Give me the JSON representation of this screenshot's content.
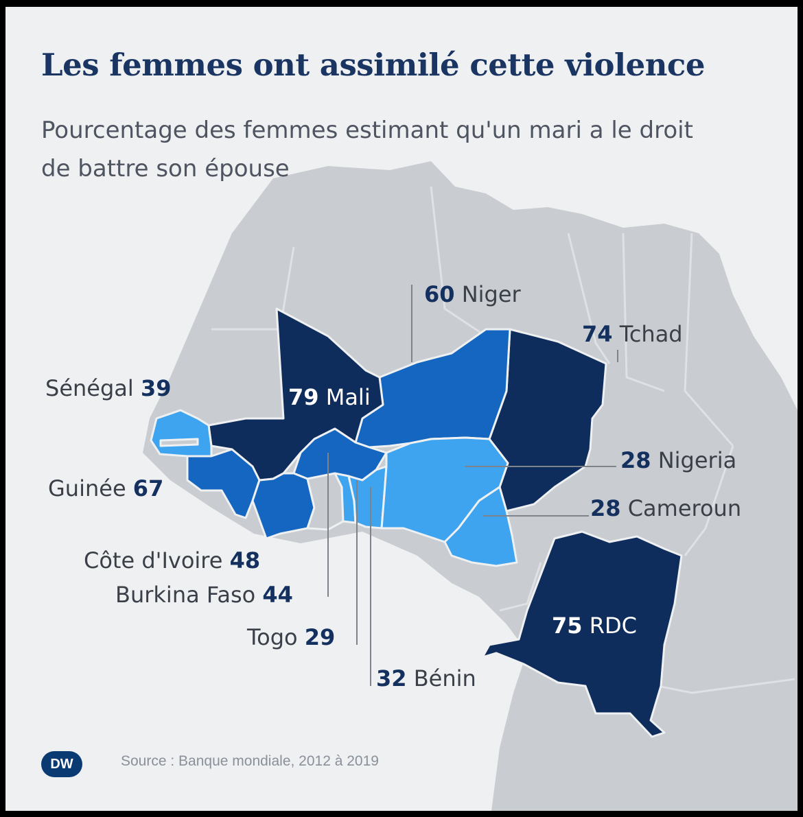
{
  "title": "Les femmes ont assimilé cette violence",
  "subtitle": "Pourcentage des femmes estimant qu'un mari a le droit de battre son épouse",
  "source": "Source : Banque mondiale, 2012 à 2019",
  "logo_text": "DW",
  "colors": {
    "background": "#eef0f2",
    "land": "#c9ccd0",
    "border": "#eef0f2",
    "dark": "#0f2d5c",
    "medium": "#1466c0",
    "light": "#3fa4ef",
    "title": "#1b3562",
    "leader": "#7e838b"
  },
  "chart_data": {
    "type": "choropleth",
    "title": "Les femmes ont assimilé cette violence",
    "subtitle": "Pourcentage des femmes estimant qu'un mari a le droit de battre son épouse",
    "unit": "%",
    "countries": [
      {
        "id": "mali",
        "name": "Mali",
        "value": 79,
        "shade": "dark"
      },
      {
        "id": "niger",
        "name": "Niger",
        "value": 60,
        "shade": "medium"
      },
      {
        "id": "tchad",
        "name": "Tchad",
        "value": 74,
        "shade": "dark"
      },
      {
        "id": "senegal",
        "name": "Sénégal",
        "value": 39,
        "shade": "light"
      },
      {
        "id": "guinee",
        "name": "Guinée",
        "value": 67,
        "shade": "medium"
      },
      {
        "id": "cote",
        "name": "Côte d'Ivoire",
        "value": 48,
        "shade": "medium"
      },
      {
        "id": "burkina",
        "name": "Burkina Faso",
        "value": 44,
        "shade": "medium"
      },
      {
        "id": "togo",
        "name": "Togo",
        "value": 29,
        "shade": "light"
      },
      {
        "id": "benin",
        "name": "Bénin",
        "value": 32,
        "shade": "light"
      },
      {
        "id": "nigeria",
        "name": "Nigeria",
        "value": 28,
        "shade": "light"
      },
      {
        "id": "cameroun",
        "name": "Cameroun",
        "value": 28,
        "shade": "light"
      },
      {
        "id": "rdc",
        "name": "RDC",
        "value": 75,
        "shade": "dark"
      }
    ]
  }
}
